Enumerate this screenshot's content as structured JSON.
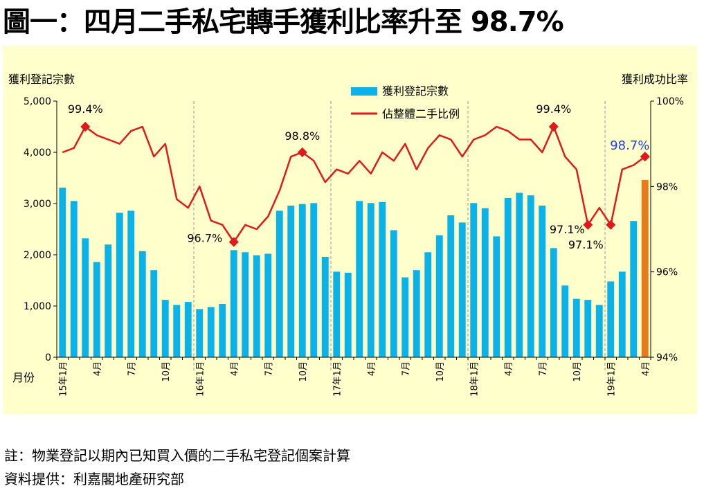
{
  "title": "圖一：四月二手私宅轉手獲利比率升至 98.7%",
  "notes": {
    "footnote": "註：物業登記以期內已知買入價的二手私宅登記個案計算",
    "source": "資料提供：利嘉閣地產研究部"
  },
  "colors": {
    "plot_background": "#FFFFCC",
    "bar": "#0BB2E8",
    "bar_highlight": "#E87A1C",
    "line": "#E0191B",
    "highlight_label": "#1F3FD8"
  },
  "chart_data": {
    "type": "bar+line",
    "left_axis_title": "獲利登記宗數",
    "right_axis_title": "獲利成功比率",
    "x_axis_title": "月份",
    "left_ylim": [
      0,
      5000
    ],
    "left_yticks": [
      "0",
      "1,000",
      "2,000",
      "3,000",
      "4,000",
      "5,000"
    ],
    "right_ylim": [
      94,
      100
    ],
    "right_yticks": [
      "94%",
      "96%",
      "98%",
      "100%"
    ],
    "grid": "vertical dashed separators at year boundaries",
    "legend": [
      "獲利登記宗數",
      "佔整體二手比例"
    ],
    "legend_position": "top-center",
    "x_tick_labels": [
      "15年1月",
      "",
      "",
      "4月",
      "",
      "",
      "7月",
      "",
      "",
      "10月",
      "",
      "",
      "16年1月",
      "",
      "",
      "4月",
      "",
      "",
      "7月",
      "",
      "",
      "10月",
      "",
      "",
      "17年1月",
      "",
      "",
      "4月",
      "",
      "",
      "7月",
      "",
      "",
      "10月",
      "",
      "",
      "18年1月",
      "",
      "",
      "4月",
      "",
      "",
      "7月",
      "",
      "",
      "10月",
      "",
      "",
      "19年1月",
      "",
      "",
      "4月"
    ],
    "bar_series": {
      "name": "獲利登記宗數",
      "values": [
        3310,
        3050,
        2320,
        1860,
        2200,
        2820,
        2860,
        2070,
        1700,
        1120,
        1020,
        1080,
        940,
        980,
        1040,
        2090,
        2050,
        1990,
        2020,
        2860,
        2960,
        2990,
        3010,
        1960,
        1670,
        1650,
        3050,
        3010,
        3030,
        2480,
        1560,
        1700,
        2050,
        2380,
        2770,
        2630,
        3010,
        2910,
        2360,
        3110,
        3210,
        3160,
        2960,
        2130,
        1400,
        1140,
        1120,
        1020,
        1480,
        1670,
        2660,
        3460
      ]
    },
    "line_series": {
      "name": "佔整體二手比例",
      "values": [
        98.8,
        98.9,
        99.4,
        99.2,
        99.1,
        99.0,
        99.3,
        99.4,
        98.7,
        99.0,
        97.7,
        97.5,
        98.0,
        97.2,
        97.1,
        96.7,
        97.1,
        97.0,
        97.3,
        97.9,
        98.7,
        98.8,
        98.6,
        98.1,
        98.4,
        98.3,
        98.6,
        98.3,
        98.8,
        98.6,
        99.0,
        98.4,
        98.9,
        99.2,
        99.1,
        98.7,
        99.1,
        99.2,
        99.4,
        99.3,
        99.1,
        99.1,
        98.8,
        99.4,
        98.7,
        98.4,
        97.1,
        97.5,
        97.1,
        98.4,
        98.5,
        98.7
      ]
    },
    "data_labels": [
      {
        "index": 2,
        "text": "99.4%"
      },
      {
        "index": 15,
        "text": "96.7%"
      },
      {
        "index": 21,
        "text": "98.8%"
      },
      {
        "index": 43,
        "text": "99.4%"
      },
      {
        "index": 46,
        "text": "97.1%"
      },
      {
        "index": 48,
        "text": "97.1%"
      },
      {
        "index": 51,
        "text": "98.7%"
      }
    ],
    "highlight_index": 51
  }
}
